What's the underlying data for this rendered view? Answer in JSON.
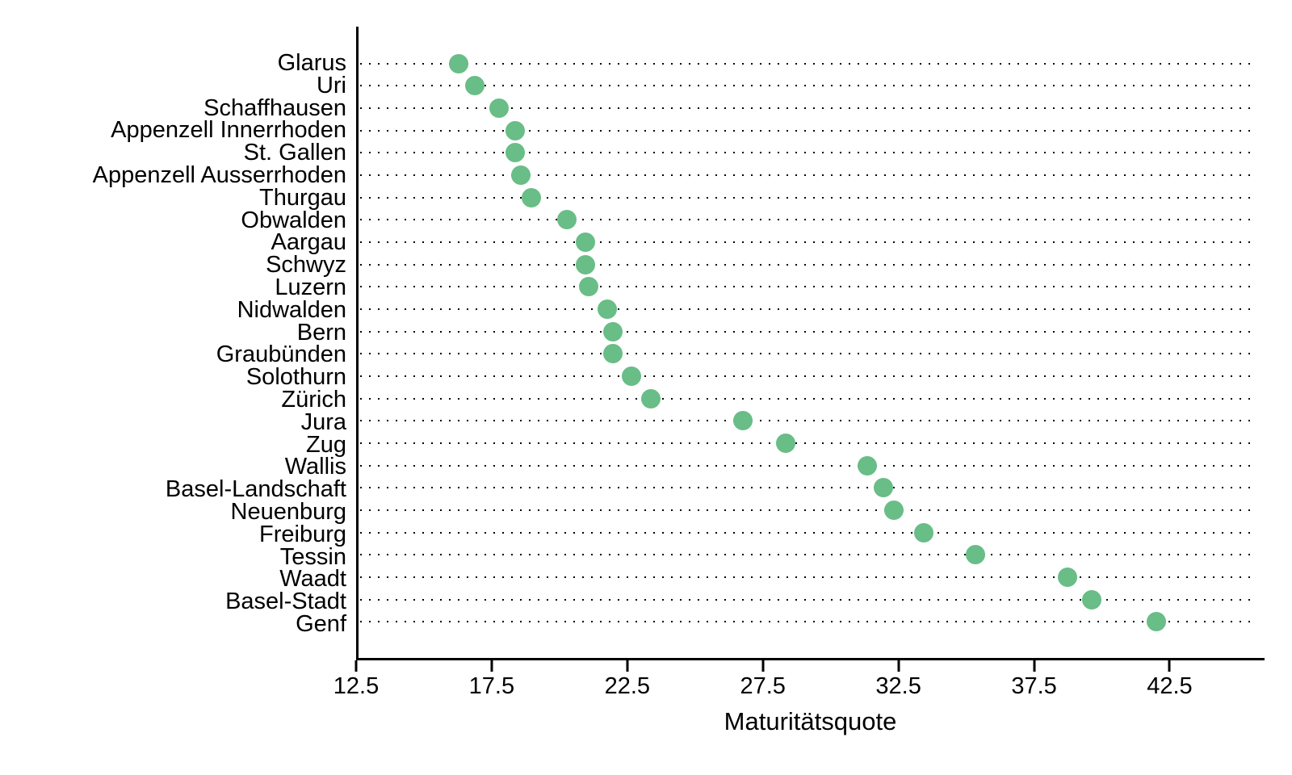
{
  "chart_data": {
    "type": "scatter",
    "subtype": "horizontal-dot-plot",
    "title": "",
    "xlabel": "Maturitätsquote",
    "ylabel": "",
    "categories": [
      "Glarus",
      "Uri",
      "Schaffhausen",
      "Appenzell Innerrhoden",
      "St. Gallen",
      "Appenzell Ausserrhoden",
      "Thurgau",
      "Obwalden",
      "Aargau",
      "Schwyz",
      "Luzern",
      "Nidwalden",
      "Bern",
      "Graubünden",
      "Solothurn",
      "Zürich",
      "Jura",
      "Zug",
      "Wallis",
      "Basel-Landschaft",
      "Neuenburg",
      "Freiburg",
      "Tessin",
      "Waadt",
      "Basel-Stadt",
      "Genf"
    ],
    "values": [
      16.2,
      16.8,
      17.7,
      18.3,
      18.3,
      18.5,
      18.9,
      20.2,
      20.9,
      20.9,
      21.0,
      21.7,
      21.9,
      21.9,
      22.6,
      23.3,
      26.7,
      28.3,
      31.3,
      31.9,
      32.3,
      33.4,
      35.3,
      38.7,
      39.6,
      42.0
    ],
    "xlim": [
      12.5,
      46.0
    ],
    "xticks": [
      12.5,
      17.5,
      22.5,
      27.5,
      32.5,
      37.5,
      42.5
    ],
    "grid": "dotted-leader-lines",
    "legend_position": "none",
    "colors": {
      "dot_fill": "#69bd87",
      "axis": "#000000",
      "leader_dots": "#000000",
      "text": "#000000",
      "background": "#ffffff"
    }
  }
}
